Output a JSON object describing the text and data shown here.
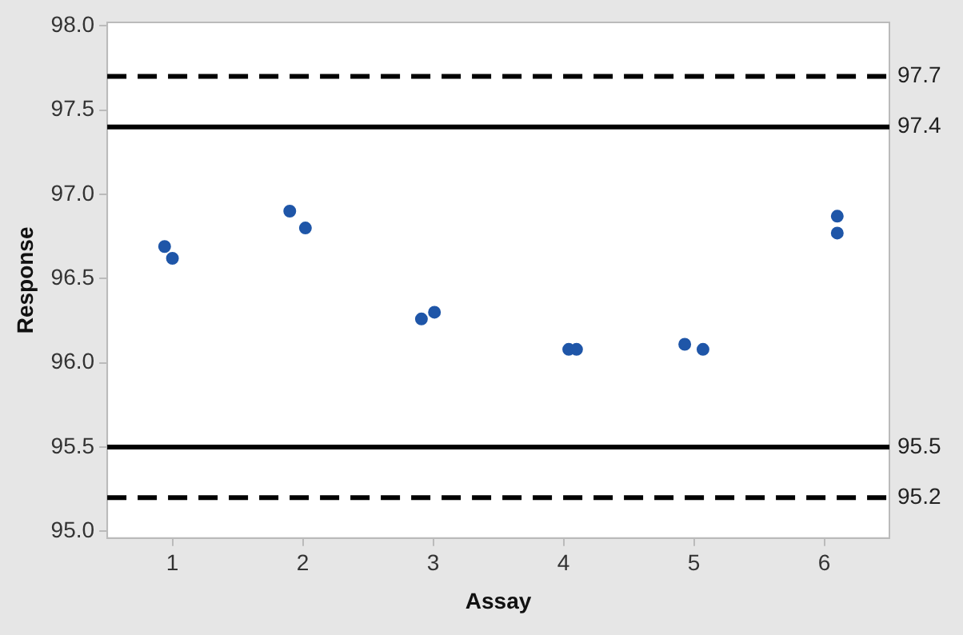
{
  "chart_data": {
    "type": "scatter",
    "xlabel": "Assay",
    "ylabel": "Response",
    "x": [
      0.94,
      1.0,
      1.9,
      2.02,
      2.91,
      3.01,
      4.04,
      4.1,
      4.93,
      5.07,
      6.1,
      6.1
    ],
    "values": [
      96.69,
      96.62,
      96.9,
      96.8,
      96.26,
      96.3,
      96.08,
      96.08,
      96.11,
      96.08,
      96.87,
      96.77
    ],
    "color": "#1f56a8",
    "marker": "circle",
    "xlim": [
      0.5,
      6.5
    ],
    "xticks": [
      1,
      2,
      3,
      4,
      5,
      6
    ],
    "ylim": [
      94.96,
      98.02
    ],
    "yticks": [
      {
        "value": 95,
        "label": "95.0"
      },
      95.5,
      {
        "value": 96,
        "label": "96.0"
      },
      96.5,
      {
        "value": 97,
        "label": "97.0"
      },
      97.5,
      {
        "value": 98,
        "label": "98.0"
      }
    ],
    "ref_lines": [
      {
        "axis": "y",
        "value": 97.7,
        "label": "97.7",
        "color": "#000000",
        "line_style": "dashed"
      },
      {
        "axis": "y",
        "value": 97.4,
        "label": "97.4",
        "color": "#000000",
        "line_style": "solid"
      },
      {
        "axis": "y",
        "value": 95.5,
        "label": "95.5",
        "color": "#000000",
        "line_style": "solid"
      },
      {
        "axis": "y",
        "value": 95.2,
        "label": "95.2",
        "color": "#000000",
        "line_style": "dashed"
      }
    ],
    "grid": false,
    "legend": false
  }
}
